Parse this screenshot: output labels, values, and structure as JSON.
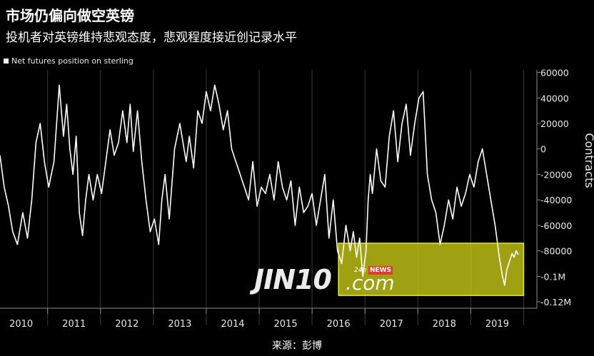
{
  "header": {
    "title": "市场仍偏向做空英镑",
    "subtitle": "投机者对英镑维持悲观态度，悲观程度接近创记录水平"
  },
  "source": "来源：彭博",
  "watermark": {
    "brand": "JIN10",
    "suffix": ".com",
    "tag_24h": "24h",
    "tag_news": "NEWS"
  },
  "colors": {
    "background": "#000000",
    "line": "#ffffff",
    "highlight_fill": "#c8c818",
    "highlight_border": "#e6e62a",
    "grid": "#3a3a3a"
  },
  "chart_data": {
    "type": "line",
    "legend": "Net futures position on sterling",
    "legend_position": "top-left",
    "ylabel": "Contracts",
    "ylim": [
      -125000,
      62000
    ],
    "y_ticks": [
      60000,
      40000,
      20000,
      0,
      -20000,
      -40000,
      -60000,
      -80000,
      -100000,
      -120000
    ],
    "y_tick_labels": [
      "60000",
      "40000",
      "20000",
      "0",
      "-20000",
      "-40000",
      "-60000",
      "-80000",
      "-0.1M",
      "-0.12M"
    ],
    "x_range": [
      2009.6,
      2019.75
    ],
    "x_ticks": [
      2010,
      2011,
      2012,
      2013,
      2014,
      2015,
      2016,
      2017,
      2018,
      2019
    ],
    "x_tick_labels": [
      "2010",
      "2011",
      "2012",
      "2013",
      "2014",
      "2015",
      "2016",
      "2017",
      "2018",
      "2019"
    ],
    "grid": "vertical",
    "highlight_region": {
      "x": [
        2016.0,
        2019.5
      ],
      "y": [
        -115000,
        -74000
      ]
    },
    "series": [
      {
        "x": [
          2009.6,
          2009.68,
          2009.76,
          2009.84,
          2009.93,
          2010.03,
          2010.12,
          2010.2,
          2010.28,
          2010.36,
          2010.44,
          2010.52,
          2010.62,
          2010.72,
          2010.8,
          2010.86,
          2010.92,
          2010.98,
          2011.04,
          2011.1,
          2011.16,
          2011.22,
          2011.28,
          2011.36,
          2011.44,
          2011.52,
          2011.6,
          2011.68,
          2011.76,
          2011.84,
          2011.92,
          2012.0,
          2012.06,
          2012.12,
          2012.2,
          2012.28,
          2012.36,
          2012.44,
          2012.52,
          2012.6,
          2012.66,
          2012.72,
          2012.8,
          2012.9,
          2013.0,
          2013.06,
          2013.12,
          2013.18,
          2013.26,
          2013.34,
          2013.42,
          2013.5,
          2013.58,
          2013.66,
          2013.74,
          2013.82,
          2013.9,
          2013.98,
          2014.06,
          2014.14,
          2014.22,
          2014.3,
          2014.38,
          2014.46,
          2014.54,
          2014.62,
          2014.7,
          2014.78,
          2014.86,
          2014.94,
          2015.02,
          2015.1,
          2015.18,
          2015.26,
          2015.34,
          2015.42,
          2015.5,
          2015.58,
          2015.66,
          2015.74,
          2015.82,
          2015.9,
          2015.98,
          2016.06,
          2016.14,
          2016.22,
          2016.28,
          2016.34,
          2016.4,
          2016.46,
          2016.52,
          2016.56,
          2016.6,
          2016.64,
          2016.72,
          2016.8,
          2016.88,
          2016.96,
          2017.04,
          2017.12,
          2017.2,
          2017.28,
          2017.36,
          2017.44,
          2017.52,
          2017.6,
          2017.68,
          2017.76,
          2017.84,
          2017.92,
          2018.0,
          2018.08,
          2018.16,
          2018.24,
          2018.32,
          2018.4,
          2018.48,
          2018.56,
          2018.64,
          2018.72,
          2018.8,
          2018.88,
          2018.96,
          2019.04,
          2019.1,
          2019.14,
          2019.18,
          2019.22,
          2019.28,
          2019.32,
          2019.36,
          2019.4
        ],
        "y": [
          -5000,
          -30000,
          -45000,
          -65000,
          -75000,
          -50000,
          -70000,
          -40000,
          5000,
          20000,
          -10000,
          -30000,
          -10000,
          50000,
          10000,
          35000,
          0,
          -20000,
          10000,
          -50000,
          -68000,
          -40000,
          -20000,
          -40000,
          -20000,
          -35000,
          -10000,
          15000,
          -5000,
          5000,
          30000,
          5000,
          35000,
          -2000,
          30000,
          -10000,
          -40000,
          -65000,
          -55000,
          -75000,
          -40000,
          -20000,
          -55000,
          0,
          20000,
          5000,
          -10000,
          10000,
          -15000,
          30000,
          20000,
          45000,
          30000,
          50000,
          35000,
          15000,
          30000,
          0,
          -10000,
          -20000,
          -30000,
          -40000,
          -10000,
          -45000,
          -30000,
          -35000,
          -20000,
          -40000,
          -10000,
          -30000,
          -40000,
          -25000,
          -60000,
          -30000,
          -50000,
          -45000,
          -35000,
          -60000,
          -40000,
          -20000,
          -70000,
          -40000,
          -80000,
          -90000,
          -60000,
          -80000,
          -65000,
          -85000,
          -70000,
          -100000,
          -80000,
          -40000,
          -20000,
          -35000,
          0,
          -25000,
          -30000,
          10000,
          30000,
          -10000,
          20000,
          35000,
          -5000,
          20000,
          40000,
          45000,
          -20000,
          -40000,
          -50000,
          -75000,
          -60000,
          -40000,
          -55000,
          -30000,
          -45000,
          -35000,
          -20000,
          -30000,
          -10000,
          0,
          -20000,
          -40000,
          -60000,
          -85000,
          -100000,
          -107000,
          -95000,
          -90000,
          -82000,
          -85000,
          -80000,
          -83000
        ]
      }
    ]
  }
}
